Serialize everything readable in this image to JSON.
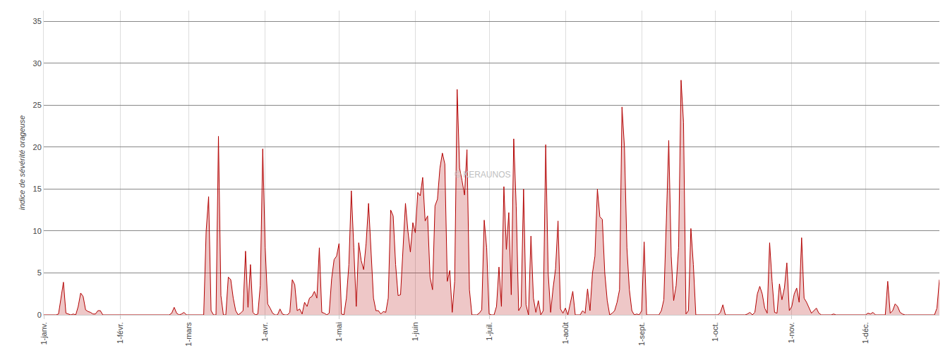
{
  "chart_data": {
    "type": "area",
    "y_label": "indice de sévérité orageuse",
    "annotations": [
      "© KERAUNOS"
    ],
    "color": "#b30000",
    "grid": true,
    "ylim": [
      0,
      36.3
    ],
    "yticks": [
      0,
      5,
      10,
      15,
      20,
      25,
      30,
      35
    ],
    "categories": [
      "1-janv.",
      null,
      null,
      null,
      null,
      null,
      null,
      null,
      null,
      null,
      null,
      null,
      null,
      null,
      null,
      null,
      null,
      null,
      null,
      null,
      null,
      null,
      null,
      null,
      null,
      null,
      null,
      null,
      null,
      null,
      null,
      "1-févr.",
      null,
      null,
      null,
      null,
      null,
      null,
      null,
      null,
      null,
      null,
      null,
      null,
      null,
      null,
      null,
      null,
      null,
      null,
      null,
      null,
      null,
      null,
      null,
      null,
      null,
      null,
      null,
      "1-mars",
      null,
      null,
      null,
      null,
      null,
      null,
      null,
      null,
      null,
      null,
      null,
      null,
      null,
      null,
      null,
      null,
      null,
      null,
      null,
      null,
      null,
      null,
      null,
      null,
      null,
      null,
      null,
      null,
      null,
      null,
      "1-avr.",
      null,
      null,
      null,
      null,
      null,
      null,
      null,
      null,
      null,
      null,
      null,
      null,
      null,
      null,
      null,
      null,
      null,
      null,
      null,
      null,
      null,
      null,
      null,
      null,
      null,
      null,
      null,
      null,
      null,
      "1-mai",
      null,
      null,
      null,
      null,
      null,
      null,
      null,
      null,
      null,
      null,
      null,
      null,
      null,
      null,
      null,
      null,
      null,
      null,
      null,
      null,
      null,
      null,
      null,
      null,
      null,
      null,
      null,
      null,
      null,
      null,
      "1-juin",
      null,
      null,
      null,
      null,
      null,
      null,
      null,
      null,
      null,
      null,
      null,
      null,
      null,
      null,
      null,
      null,
      null,
      null,
      null,
      null,
      null,
      null,
      null,
      null,
      null,
      null,
      null,
      null,
      null,
      "1-juil.",
      null,
      null,
      null,
      null,
      null,
      null,
      null,
      null,
      null,
      null,
      null,
      null,
      null,
      null,
      null,
      null,
      null,
      null,
      null,
      null,
      null,
      null,
      null,
      null,
      null,
      null,
      null,
      null,
      null,
      null,
      "1-août",
      null,
      null,
      null,
      null,
      null,
      null,
      null,
      null,
      null,
      null,
      null,
      null,
      null,
      null,
      null,
      null,
      null,
      null,
      null,
      null,
      null,
      null,
      null,
      null,
      null,
      null,
      null,
      null,
      null,
      null,
      "1-sept.",
      null,
      null,
      null,
      null,
      null,
      null,
      null,
      null,
      null,
      null,
      null,
      null,
      null,
      null,
      null,
      null,
      null,
      null,
      null,
      null,
      null,
      null,
      null,
      null,
      null,
      null,
      null,
      null,
      null,
      "1-oct.",
      null,
      null,
      null,
      null,
      null,
      null,
      null,
      null,
      null,
      null,
      null,
      null,
      null,
      null,
      null,
      null,
      null,
      null,
      null,
      null,
      null,
      null,
      null,
      null,
      null,
      null,
      null,
      null,
      null,
      null,
      "1-nov.",
      null,
      null,
      null,
      null,
      null,
      null,
      null,
      null,
      null,
      null,
      null,
      null,
      null,
      null,
      null,
      null,
      null,
      null,
      null,
      null,
      null,
      null,
      null,
      null,
      null,
      null,
      null,
      null,
      null,
      "1-déc.",
      null,
      null,
      null,
      null,
      null,
      null,
      null,
      null,
      null,
      null,
      null,
      null,
      null,
      null,
      null,
      null,
      null,
      null,
      null,
      null,
      null,
      null,
      null,
      null,
      null,
      null,
      null,
      null,
      null,
      null
    ],
    "values": [
      0,
      0,
      0,
      0,
      0,
      0,
      0.1,
      2,
      3.9,
      0.2,
      0.1,
      0,
      0.1,
      0,
      1,
      2.6,
      2.2,
      0.6,
      0.4,
      0.3,
      0.1,
      0.1,
      0.5,
      0.5,
      0,
      0,
      0,
      0,
      0,
      0,
      0,
      0,
      0,
      0,
      0,
      0,
      0,
      0,
      0,
      0,
      0,
      0,
      0,
      0,
      0,
      0,
      0,
      0,
      0,
      0,
      0,
      0,
      0.2,
      0.9,
      0.2,
      0,
      0.1,
      0.3,
      0,
      0,
      0,
      0,
      0,
      0,
      0,
      0,
      10,
      14.1,
      0.5,
      0,
      0,
      21.3,
      2.3,
      0,
      0,
      4.5,
      4.2,
      2,
      0.5,
      0,
      0.2,
      0.5,
      7.6,
      0.9,
      6,
      0.3,
      0,
      0.1,
      3.5,
      19.8,
      8,
      1.3,
      0.8,
      0.2,
      0,
      0,
      0.7,
      0.1,
      0,
      0,
      0.3,
      4.2,
      3.6,
      0.5,
      0.7,
      0.1,
      1.5,
      1,
      2,
      2.2,
      2.8,
      2,
      8,
      0.3,
      0.2,
      0,
      0.2,
      4.3,
      6.6,
      7,
      8.5,
      0.1,
      0,
      2,
      6,
      14.8,
      8,
      1,
      8.6,
      6.5,
      5.4,
      8.5,
      13.3,
      7,
      2,
      0.5,
      0.5,
      0.1,
      0.4,
      0.3,
      2,
      12.5,
      11.8,
      6,
      2.3,
      2.4,
      8,
      13.3,
      10,
      7.5,
      11,
      9.8,
      14.6,
      14.2,
      16.4,
      11.2,
      11.8,
      4.5,
      3,
      13,
      13.8,
      17.5,
      19.3,
      18,
      4,
      5.3,
      0.3,
      4,
      26.9,
      17.5,
      16,
      14.3,
      19.7,
      3,
      0,
      0,
      0,
      0.2,
      0.6,
      11.3,
      8,
      0.1,
      0,
      0,
      1,
      5.7,
      1,
      15.3,
      7.8,
      12.2,
      2.4,
      21,
      13,
      0.5,
      1,
      15,
      1.2,
      0,
      9.4,
      2,
      0.3,
      1.7,
      0,
      0.5,
      20.3,
      5,
      0.3,
      3.2,
      5.5,
      11.2,
      0.7,
      0.2,
      0.8,
      0,
      1.5,
      2.8,
      0,
      0,
      0,
      0.5,
      0.2,
      3.1,
      0.5,
      5,
      7,
      15,
      11.7,
      11.4,
      5,
      1.7,
      0,
      0.2,
      0.5,
      1.5,
      3,
      24.8,
      20,
      8,
      3,
      0.5,
      0,
      0.1,
      0,
      0.5,
      8.7,
      0,
      0,
      0,
      0,
      0,
      0,
      0.5,
      1.8,
      11,
      20.8,
      7,
      1.7,
      3.5,
      8,
      28,
      23,
      0.1,
      0.5,
      10.3,
      6,
      0,
      0,
      0,
      0,
      0,
      0,
      0,
      0,
      0,
      0,
      0.3,
      1.2,
      0,
      0,
      0,
      0,
      0,
      0,
      0,
      0,
      0,
      0.1,
      0.3,
      0,
      0.3,
      2.5,
      3.4,
      2.5,
      0.8,
      0.2,
      8.6,
      4,
      0.3,
      0.2,
      3.7,
      1.8,
      3.2,
      6.2,
      0.5,
      1,
      2.5,
      3.2,
      1.5,
      9.2,
      2,
      1.5,
      0.8,
      0.2,
      0.5,
      0.8,
      0.2,
      0,
      0,
      0,
      0,
      0,
      0.1,
      0,
      0,
      0,
      0,
      0,
      0,
      0,
      0,
      0,
      0,
      0,
      0,
      0,
      0.2,
      0.1,
      0.3,
      0,
      0,
      0,
      0,
      0,
      4,
      0.2,
      0.5,
      1.3,
      1,
      0.3,
      0.1,
      0,
      0,
      0,
      0,
      0,
      0,
      0,
      0,
      0,
      0,
      0,
      0,
      0,
      0.8,
      4.2
    ]
  }
}
